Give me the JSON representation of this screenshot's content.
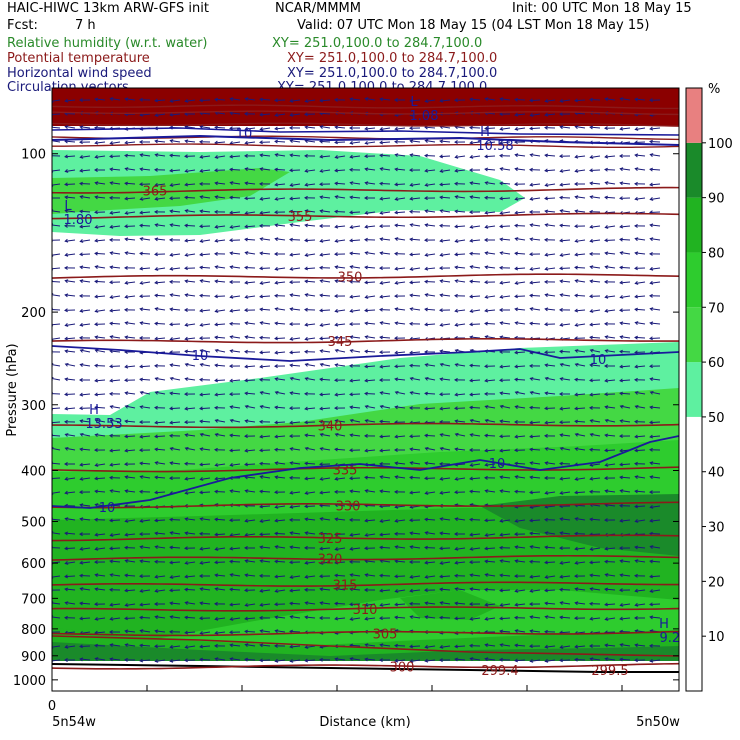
{
  "header": {
    "model_title": "HAIC-HIWC 13km ARW-GFS init",
    "org": "NCAR/MMMM",
    "init": "Init: 00 UTC Mon 18 May 15",
    "fcst_label": "Fcst:",
    "fcst_value": "7 h",
    "valid": "Valid: 07 UTC Mon 18 May 15 (04 LST Mon 18 May 15)",
    "fields": [
      {
        "label": "Relative humidity (w.r.t. water)",
        "xy": "XY= 251.0,100.0 to 284.7,100.0",
        "color": "#2a8a2a"
      },
      {
        "label": "Potential temperature",
        "xy": "XY= 251.0,100.0 to 284.7,100.0",
        "color": "#8b1a1a"
      },
      {
        "label": "Horizontal wind speed",
        "xy": "XY= 251.0,100.0 to 284.7,100.0",
        "color": "#1a1a7a"
      },
      {
        "label": "Circulation vectors",
        "xy": "XY= 251.0,100.0 to 284.7,100.0",
        "color": "#1a1a7a"
      }
    ]
  },
  "chart_data": {
    "type": "heatmap",
    "title": "Cross-section: Relative humidity, potential temperature, horizontal wind speed, circulation vectors",
    "ylabel": "Pressure (hPa)",
    "xlabel": "Distance (km)",
    "y_scale": "log",
    "ylim": [
      1050,
      75
    ],
    "y_ticks": [
      100,
      200,
      300,
      400,
      500,
      600,
      700,
      800,
      900,
      1000
    ],
    "x_tick_labels": {
      "origin": "0",
      "left_end": "5n54w",
      "right_end": "5n50w"
    },
    "colorbar": {
      "unit": "%",
      "ticks": [
        10,
        20,
        30,
        40,
        50,
        60,
        70,
        80,
        90,
        100
      ],
      "bins": [
        {
          "range": [
            0,
            50
          ],
          "color": "#ffffff"
        },
        {
          "range": [
            50,
            60
          ],
          "color": "#5ef0a0"
        },
        {
          "range": [
            60,
            70
          ],
          "color": "#44d844"
        },
        {
          "range": [
            70,
            80
          ],
          "color": "#2ecc2e"
        },
        {
          "range": [
            80,
            90
          ],
          "color": "#21b321"
        },
        {
          "range": [
            90,
            100
          ],
          "color": "#1a8a2a"
        },
        {
          "range": [
            100,
            110
          ],
          "color": "#e88080"
        }
      ]
    },
    "theta_contours": [
      {
        "label": "365",
        "p": 118
      },
      {
        "label": "355",
        "p": 132
      },
      {
        "label": "350",
        "p": 172
      },
      {
        "label": "345",
        "p": 228
      },
      {
        "label": "340",
        "p": 330
      },
      {
        "label": "335",
        "p": 400
      },
      {
        "label": "330",
        "p": 468
      },
      {
        "label": "325",
        "p": 540
      },
      {
        "label": "320",
        "p": 590
      },
      {
        "label": "315",
        "p": 662
      },
      {
        "label": "310",
        "p": 737
      },
      {
        "label": "305",
        "p": 820
      },
      {
        "label": "300",
        "p": 948
      }
    ],
    "theta_extrema": [
      "299.4",
      "299.5"
    ],
    "wind_contours": [
      {
        "label": "10",
        "p": 475
      },
      {
        "label": "10",
        "p": 660
      }
    ],
    "wind_extrema": [
      {
        "type": "L",
        "value": "1.80"
      },
      {
        "type": "H",
        "value": "13.53"
      },
      {
        "type": "H",
        "value": "10.58"
      },
      {
        "type": "H",
        "value": "9.21"
      },
      {
        "type": "L",
        "value": "1.08"
      }
    ]
  }
}
